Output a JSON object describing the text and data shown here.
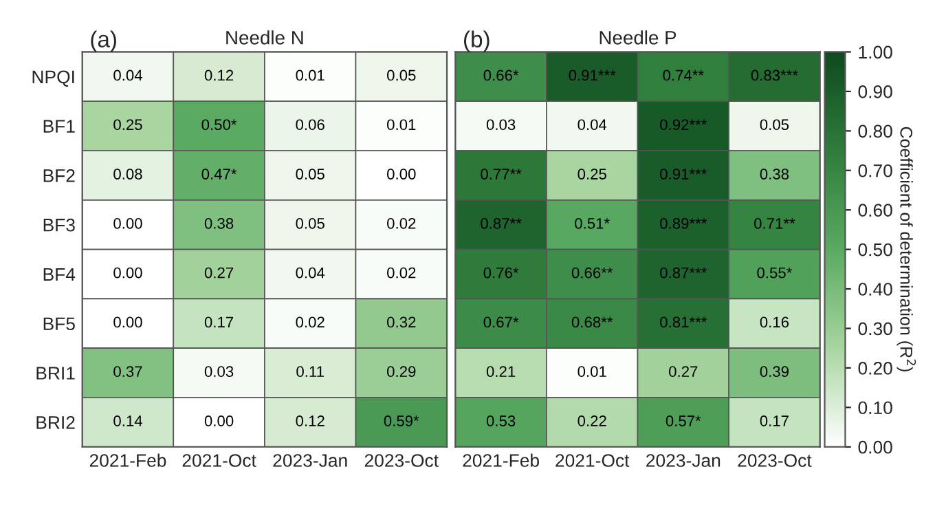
{
  "chart_data": [
    {
      "type": "heatmap",
      "title": "Needle N",
      "annotations": [
        "(a)"
      ],
      "categories": [
        "2021-Feb",
        "2021-Oct",
        "2023-Jan",
        "2023-Oct"
      ],
      "y_categories": [
        "NPQI",
        "BF1",
        "BF2",
        "BF3",
        "BF4",
        "BF5",
        "BRI1",
        "BRI2"
      ],
      "cells": [
        [
          0.04,
          0.12,
          0.01,
          0.05
        ],
        [
          0.25,
          0.5,
          0.06,
          0.01
        ],
        [
          0.08,
          0.47,
          0.05,
          0.0
        ],
        [
          0.0,
          0.38,
          0.05,
          0.02
        ],
        [
          0.0,
          0.27,
          0.04,
          0.02
        ],
        [
          0.0,
          0.17,
          0.02,
          0.32
        ],
        [
          0.37,
          0.03,
          0.11,
          0.29
        ],
        [
          0.14,
          0.0,
          0.12,
          0.59
        ]
      ],
      "cell_labels": [
        [
          "0.04",
          "0.12",
          "0.01",
          "0.05"
        ],
        [
          "0.25",
          "0.50*",
          "0.06",
          "0.01"
        ],
        [
          "0.08",
          "0.47*",
          "0.05",
          "0.00"
        ],
        [
          "0.00",
          "0.38",
          "0.05",
          "0.02"
        ],
        [
          "0.00",
          "0.27",
          "0.04",
          "0.02"
        ],
        [
          "0.00",
          "0.17",
          "0.02",
          "0.32"
        ],
        [
          "0.37",
          "0.03",
          "0.11",
          "0.29"
        ],
        [
          "0.14",
          "0.00",
          "0.12",
          "0.59*"
        ]
      ]
    },
    {
      "type": "heatmap",
      "title": "Needle P",
      "annotations": [
        "(b)"
      ],
      "categories": [
        "2021-Feb",
        "2021-Oct",
        "2023-Jan",
        "2023-Oct"
      ],
      "y_categories": [
        null,
        null,
        null,
        null,
        null,
        null,
        null,
        null
      ],
      "tick_labels": "x",
      "cells": [
        [
          0.66,
          0.91,
          0.74,
          0.83
        ],
        [
          0.03,
          0.04,
          0.92,
          0.05
        ],
        [
          0.77,
          0.25,
          0.91,
          0.38
        ],
        [
          0.87,
          0.51,
          0.89,
          0.71
        ],
        [
          0.76,
          0.66,
          0.87,
          0.55
        ],
        [
          0.67,
          0.68,
          0.81,
          0.16
        ],
        [
          0.21,
          0.01,
          0.27,
          0.39
        ],
        [
          0.53,
          0.22,
          0.57,
          0.17
        ]
      ],
      "cell_labels": [
        [
          "0.66*",
          "0.91***",
          "0.74**",
          "0.83***"
        ],
        [
          "0.03",
          "0.04",
          "0.92***",
          "0.05"
        ],
        [
          "0.77**",
          "0.25",
          "0.91***",
          "0.38"
        ],
        [
          "0.87**",
          "0.51*",
          "0.89***",
          "0.71**"
        ],
        [
          "0.76*",
          "0.66**",
          "0.87***",
          "0.55*"
        ],
        [
          "0.67*",
          "0.68**",
          "0.81***",
          "0.16"
        ],
        [
          "0.21",
          "0.01",
          "0.27",
          "0.39"
        ],
        [
          "0.53",
          "0.22",
          "0.57*",
          "0.17"
        ]
      ],
      "clim": [
        0,
        1
      ],
      "cticks": [
        {
          "value": 0,
          "label": "0.00"
        },
        {
          "value": 0.1,
          "label": "0.10"
        },
        {
          "value": 0.2,
          "label": "0.20"
        },
        {
          "value": 0.3,
          "label": "0.30"
        },
        {
          "value": 0.4,
          "label": "0.40"
        },
        {
          "value": 0.5,
          "label": "0.50"
        },
        {
          "value": 0.6,
          "label": "0.60"
        },
        {
          "value": 0.7,
          "label": "0.70"
        },
        {
          "value": 0.8,
          "label": "0.80"
        },
        {
          "value": 0.9,
          "label": "0.90"
        },
        {
          "value": 1,
          "label": "1.00"
        }
      ],
      "clabel": "Coefficient of determination (R$^{2}$)"
    }
  ]
}
